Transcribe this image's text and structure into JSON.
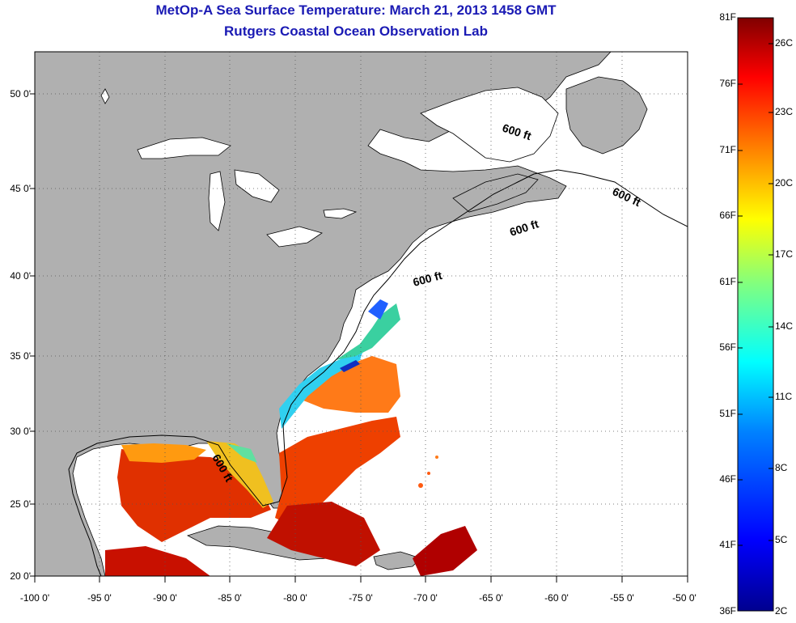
{
  "title": "MetOp-A Sea Surface Temperature:  March 21, 2013 1458 GMT",
  "subtitle": "Rutgers Coastal Ocean Observation Lab",
  "map": {
    "lon_range": [
      -100,
      -50
    ],
    "lat_range": [
      20,
      52
    ],
    "grid": true,
    "lon_ticks": [
      "-100 0'",
      "-95 0'",
      "-90 0'",
      "-85 0'",
      "-80 0'",
      "-75 0'",
      "-70 0'",
      "-65 0'",
      "-60 0'",
      "-55 0'",
      "-50 0'"
    ],
    "lat_ticks": [
      "20 0'",
      "25 0'",
      "30 0'",
      "35 0'",
      "40 0'",
      "45 0'",
      "50 0'"
    ],
    "land_color": "#b0b0b0",
    "ocean_color": "#ffffff",
    "isobath_labels": [
      "600 ft",
      "600 ft",
      "600 ft",
      "600 ft",
      "600 ft"
    ]
  },
  "colorbar": {
    "f_labels": [
      "81F",
      "76F",
      "71F",
      "66F",
      "61F",
      "56F",
      "51F",
      "46F",
      "41F",
      "36F"
    ],
    "c_labels": [
      "26C",
      "23C",
      "20C",
      "17C",
      "14C",
      "11C",
      "8C",
      "5C",
      "2C"
    ],
    "colors": [
      "#00008f",
      "#0000ff",
      "#0080ff",
      "#00ffff",
      "#80ff80",
      "#ffff00",
      "#ff8000",
      "#ff0000",
      "#800000"
    ]
  }
}
